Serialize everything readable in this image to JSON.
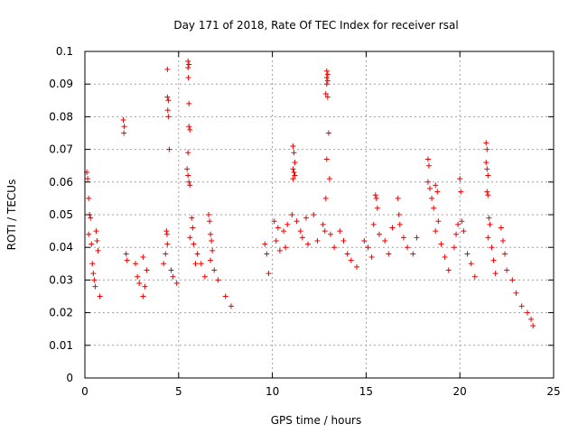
{
  "chart_data": {
    "type": "scatter",
    "title": "Day 171 of 2018, Rate Of TEC Index for receiver rsal",
    "xlabel": "GPS time / hours",
    "ylabel": "ROTI / TECUs",
    "xlim": [
      0,
      25
    ],
    "ylim": [
      0,
      0.1
    ],
    "xticks": [
      0,
      5,
      10,
      15,
      20,
      25
    ],
    "xtick_labels": [
      "0",
      "5",
      "10",
      "15",
      "20",
      "25"
    ],
    "yticks": [
      0,
      0.01,
      0.02,
      0.03,
      0.04,
      0.05,
      0.06,
      0.07,
      0.08,
      0.09,
      0.1
    ],
    "ytick_labels": [
      "0",
      "0.01",
      "0.02",
      "0.03",
      "0.04",
      "0.05",
      "0.06",
      "0.07",
      "0.08",
      "0.09",
      "0.1"
    ],
    "grid": true,
    "marker": "+",
    "color": "#ee0000",
    "series": [
      {
        "name": "ROTI",
        "points": [
          [
            0.1,
            0.063
          ],
          [
            0.15,
            0.061
          ],
          [
            0.2,
            0.055
          ],
          [
            0.25,
            0.05
          ],
          [
            0.3,
            0.049
          ],
          [
            0.2,
            0.044
          ],
          [
            0.35,
            0.041
          ],
          [
            0.4,
            0.035
          ],
          [
            0.5,
            0.03
          ],
          [
            0.55,
            0.028
          ],
          [
            0.6,
            0.045
          ],
          [
            0.65,
            0.042
          ],
          [
            0.7,
            0.039
          ],
          [
            0.45,
            0.032
          ],
          [
            0.8,
            0.025
          ],
          [
            2.05,
            0.079
          ],
          [
            2.1,
            0.077
          ],
          [
            2.08,
            0.075
          ],
          [
            2.2,
            0.038
          ],
          [
            2.25,
            0.036
          ],
          [
            2.7,
            0.035
          ],
          [
            2.8,
            0.031
          ],
          [
            2.9,
            0.029
          ],
          [
            3.1,
            0.025
          ],
          [
            3.2,
            0.028
          ],
          [
            3.3,
            0.033
          ],
          [
            3.1,
            0.037
          ],
          [
            4.4,
            0.0945
          ],
          [
            4.4,
            0.086
          ],
          [
            4.45,
            0.085
          ],
          [
            4.42,
            0.082
          ],
          [
            4.45,
            0.08
          ],
          [
            4.5,
            0.07
          ],
          [
            4.35,
            0.045
          ],
          [
            4.38,
            0.044
          ],
          [
            4.4,
            0.041
          ],
          [
            4.3,
            0.038
          ],
          [
            4.2,
            0.035
          ],
          [
            4.6,
            0.033
          ],
          [
            4.7,
            0.031
          ],
          [
            4.9,
            0.029
          ],
          [
            5.5,
            0.097
          ],
          [
            5.55,
            0.096
          ],
          [
            5.5,
            0.095
          ],
          [
            5.52,
            0.092
          ],
          [
            5.55,
            0.084
          ],
          [
            5.55,
            0.077
          ],
          [
            5.6,
            0.076
          ],
          [
            5.5,
            0.069
          ],
          [
            5.45,
            0.064
          ],
          [
            5.5,
            0.062
          ],
          [
            5.55,
            0.06
          ],
          [
            5.6,
            0.059
          ],
          [
            5.7,
            0.049
          ],
          [
            5.75,
            0.046
          ],
          [
            5.6,
            0.043
          ],
          [
            5.8,
            0.041
          ],
          [
            6.0,
            0.038
          ],
          [
            5.9,
            0.035
          ],
          [
            6.2,
            0.035
          ],
          [
            6.4,
            0.031
          ],
          [
            6.6,
            0.05
          ],
          [
            6.65,
            0.048
          ],
          [
            6.7,
            0.044
          ],
          [
            6.75,
            0.042
          ],
          [
            6.8,
            0.039
          ],
          [
            6.7,
            0.036
          ],
          [
            6.9,
            0.033
          ],
          [
            7.1,
            0.03
          ],
          [
            7.5,
            0.025
          ],
          [
            7.8,
            0.022
          ],
          [
            9.6,
            0.041
          ],
          [
            9.7,
            0.038
          ],
          [
            9.8,
            0.032
          ],
          [
            10.1,
            0.048
          ],
          [
            10.3,
            0.046
          ],
          [
            10.2,
            0.042
          ],
          [
            10.4,
            0.039
          ],
          [
            10.6,
            0.045
          ],
          [
            10.8,
            0.047
          ],
          [
            10.7,
            0.04
          ],
          [
            11.1,
            0.071
          ],
          [
            11.15,
            0.069
          ],
          [
            11.2,
            0.066
          ],
          [
            11.1,
            0.064
          ],
          [
            11.15,
            0.063
          ],
          [
            11.2,
            0.062
          ],
          [
            11.1,
            0.061
          ],
          [
            11.05,
            0.05
          ],
          [
            11.3,
            0.048
          ],
          [
            11.5,
            0.045
          ],
          [
            11.6,
            0.043
          ],
          [
            11.8,
            0.049
          ],
          [
            11.9,
            0.041
          ],
          [
            12.2,
            0.05
          ],
          [
            12.4,
            0.042
          ],
          [
            12.9,
            0.094
          ],
          [
            12.95,
            0.093
          ],
          [
            12.9,
            0.092
          ],
          [
            12.95,
            0.091
          ],
          [
            12.9,
            0.09
          ],
          [
            12.85,
            0.087
          ],
          [
            12.95,
            0.086
          ],
          [
            13.0,
            0.075
          ],
          [
            12.9,
            0.067
          ],
          [
            13.05,
            0.061
          ],
          [
            12.85,
            0.055
          ],
          [
            12.7,
            0.047
          ],
          [
            12.8,
            0.045
          ],
          [
            13.1,
            0.044
          ],
          [
            13.3,
            0.04
          ],
          [
            13.6,
            0.045
          ],
          [
            13.8,
            0.042
          ],
          [
            14.0,
            0.038
          ],
          [
            14.2,
            0.036
          ],
          [
            14.5,
            0.034
          ],
          [
            14.9,
            0.042
          ],
          [
            15.1,
            0.04
          ],
          [
            15.3,
            0.037
          ],
          [
            15.5,
            0.056
          ],
          [
            15.55,
            0.055
          ],
          [
            15.6,
            0.052
          ],
          [
            15.4,
            0.047
          ],
          [
            15.7,
            0.044
          ],
          [
            16.0,
            0.042
          ],
          [
            16.2,
            0.038
          ],
          [
            16.4,
            0.046
          ],
          [
            16.7,
            0.055
          ],
          [
            16.75,
            0.05
          ],
          [
            16.8,
            0.047
          ],
          [
            17.0,
            0.043
          ],
          [
            17.2,
            0.04
          ],
          [
            17.5,
            0.038
          ],
          [
            17.7,
            0.043
          ],
          [
            18.3,
            0.067
          ],
          [
            18.35,
            0.065
          ],
          [
            18.3,
            0.06
          ],
          [
            18.4,
            0.058
          ],
          [
            18.5,
            0.055
          ],
          [
            18.6,
            0.052
          ],
          [
            18.7,
            0.059
          ],
          [
            18.8,
            0.057
          ],
          [
            18.85,
            0.048
          ],
          [
            18.7,
            0.045
          ],
          [
            19.0,
            0.041
          ],
          [
            19.2,
            0.037
          ],
          [
            19.4,
            0.033
          ],
          [
            19.7,
            0.04
          ],
          [
            19.8,
            0.044
          ],
          [
            19.9,
            0.047
          ],
          [
            20.0,
            0.061
          ],
          [
            20.05,
            0.057
          ],
          [
            20.1,
            0.048
          ],
          [
            20.2,
            0.045
          ],
          [
            20.4,
            0.038
          ],
          [
            20.6,
            0.035
          ],
          [
            20.8,
            0.031
          ],
          [
            21.4,
            0.072
          ],
          [
            21.45,
            0.07
          ],
          [
            21.4,
            0.066
          ],
          [
            21.45,
            0.064
          ],
          [
            21.5,
            0.062
          ],
          [
            21.45,
            0.057
          ],
          [
            21.5,
            0.056
          ],
          [
            21.55,
            0.049
          ],
          [
            21.6,
            0.047
          ],
          [
            21.5,
            0.043
          ],
          [
            21.7,
            0.04
          ],
          [
            21.8,
            0.036
          ],
          [
            21.9,
            0.032
          ],
          [
            22.2,
            0.046
          ],
          [
            22.3,
            0.042
          ],
          [
            22.4,
            0.038
          ],
          [
            22.5,
            0.033
          ],
          [
            22.8,
            0.03
          ],
          [
            23.0,
            0.026
          ],
          [
            23.3,
            0.022
          ],
          [
            23.6,
            0.02
          ],
          [
            23.8,
            0.018
          ],
          [
            23.9,
            0.016
          ]
        ]
      }
    ]
  }
}
